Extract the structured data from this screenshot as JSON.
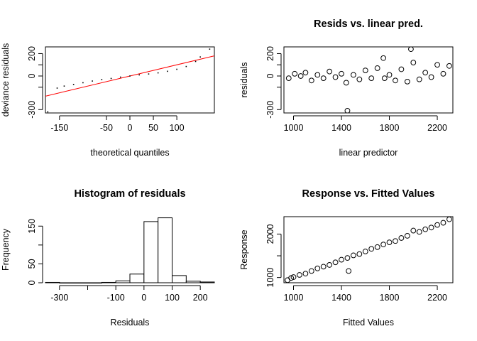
{
  "chart_data": [
    {
      "type": "scatter",
      "title": "",
      "xlabel": "theoretical quantiles",
      "ylabel": "deviance residuals",
      "xlim": [
        -180,
        180
      ],
      "ylim": [
        -330,
        260
      ],
      "xticks": [
        -150,
        -50,
        0,
        50,
        100
      ],
      "yticks": [
        -300,
        -100,
        0,
        100,
        200
      ],
      "yticklabels_shown": [
        "-300",
        "0",
        "200"
      ],
      "reference_line": {
        "color": "#ff0000",
        "points": [
          [
            -180,
            -180
          ],
          [
            180,
            180
          ]
        ]
      },
      "marker": "point",
      "series": [
        {
          "x": [
            -175,
            -155,
            -140,
            -120,
            -100,
            -80,
            -60,
            -40,
            -20,
            0,
            20,
            40,
            60,
            80,
            100,
            120,
            140,
            150,
            170
          ],
          "y": [
            -320,
            -108,
            -90,
            -75,
            -60,
            -45,
            -32,
            -22,
            -10,
            0,
            10,
            18,
            28,
            42,
            60,
            85,
            130,
            170,
            240
          ]
        }
      ]
    },
    {
      "type": "scatter",
      "title": "Resids vs. linear pred.",
      "xlabel": "linear predictor",
      "ylabel": "residuals",
      "xlim": [
        920,
        2330
      ],
      "ylim": [
        -330,
        260
      ],
      "xticks": [
        1000,
        1400,
        1800,
        2200
      ],
      "xticklabels_shown": [
        "1000",
        "1400",
        "1800",
        "2200"
      ],
      "yticks": [
        -300,
        -100,
        0,
        100,
        200
      ],
      "yticklabels_shown": [
        "-300",
        "0",
        "200"
      ],
      "marker": "open-circle",
      "series": [
        {
          "x": [
            960,
            1010,
            1060,
            1100,
            1150,
            1200,
            1250,
            1300,
            1350,
            1400,
            1440,
            1450,
            1500,
            1550,
            1600,
            1650,
            1700,
            1750,
            1760,
            1800,
            1850,
            1900,
            1950,
            1980,
            2000,
            2050,
            2100,
            2150,
            2200,
            2250,
            2300
          ],
          "y": [
            -20,
            20,
            0,
            30,
            -40,
            10,
            -20,
            40,
            -10,
            20,
            -60,
            -310,
            10,
            -30,
            50,
            -20,
            70,
            160,
            -20,
            10,
            -40,
            60,
            -50,
            240,
            120,
            -30,
            30,
            -10,
            100,
            20,
            90
          ]
        }
      ]
    },
    {
      "type": "bar",
      "title": "Histogram of residuals",
      "xlabel": "Residuals",
      "ylabel": "Frequency",
      "xlim": [
        -350,
        250
      ],
      "ylim": [
        0,
        175
      ],
      "xticks": [
        -300,
        -200,
        -100,
        0,
        100,
        200
      ],
      "xticklabels_shown": [
        "-300",
        "-100",
        "0",
        "100",
        "200"
      ],
      "yticks": [
        0,
        50,
        100,
        150
      ],
      "yticklabels_shown": [
        "0",
        "50",
        "150"
      ],
      "bins": [
        {
          "from": -350,
          "to": -300,
          "count": 1
        },
        {
          "from": -300,
          "to": -250,
          "count": 0
        },
        {
          "from": -250,
          "to": -200,
          "count": 0
        },
        {
          "from": -200,
          "to": -150,
          "count": 0
        },
        {
          "from": -150,
          "to": -100,
          "count": 1
        },
        {
          "from": -100,
          "to": -50,
          "count": 5
        },
        {
          "from": -50,
          "to": 0,
          "count": 23
        },
        {
          "from": 0,
          "to": 50,
          "count": 162
        },
        {
          "from": 50,
          "to": 100,
          "count": 172
        },
        {
          "from": 100,
          "to": 150,
          "count": 19
        },
        {
          "from": 150,
          "to": 200,
          "count": 4
        },
        {
          "from": 200,
          "to": 250,
          "count": 2
        }
      ]
    },
    {
      "type": "scatter",
      "title": "Response vs. Fitted Values",
      "xlabel": "Fitted Values",
      "ylabel": "Response",
      "xlim": [
        920,
        2330
      ],
      "ylim": [
        880,
        2400
      ],
      "xticks": [
        1000,
        1400,
        1800,
        2200
      ],
      "xticklabels_shown": [
        "1000",
        "1400",
        "1800",
        "2200"
      ],
      "yticks": [
        1000,
        1500,
        2000
      ],
      "yticklabels_shown": [
        "1000",
        "2000"
      ],
      "marker": "open-circle",
      "series": [
        {
          "x": [
            950,
            980,
            1000,
            1050,
            1100,
            1150,
            1200,
            1250,
            1300,
            1350,
            1400,
            1450,
            1460,
            1500,
            1550,
            1600,
            1650,
            1700,
            1750,
            1800,
            1850,
            1900,
            1950,
            2000,
            2050,
            2100,
            2150,
            2200,
            2250,
            2300
          ],
          "y": [
            940,
            990,
            1010,
            1060,
            1090,
            1150,
            1210,
            1250,
            1290,
            1350,
            1410,
            1450,
            1150,
            1510,
            1540,
            1600,
            1660,
            1700,
            1760,
            1810,
            1840,
            1910,
            1960,
            2080,
            2050,
            2110,
            2150,
            2210,
            2260,
            2340
          ]
        }
      ]
    }
  ]
}
